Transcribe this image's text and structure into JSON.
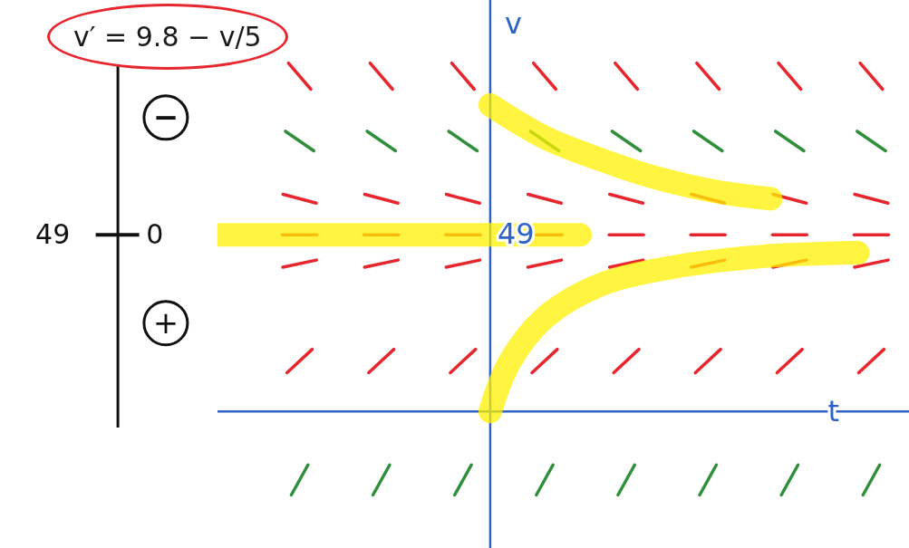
{
  "chart_data": {
    "type": "slope_field",
    "equation": "v′ = 9.8 − v/5",
    "x_label": "t",
    "y_label": "v",
    "xlim": [
      -10,
      15.4
    ],
    "ylim": [
      -38,
      114
    ],
    "tick_labels": false,
    "equilibrium": 49,
    "phase_line": {
      "equilibrium": 49,
      "slope": 0,
      "above": "−",
      "below": "+"
    },
    "slope_columns": [
      -7,
      -4,
      -1,
      2,
      5,
      8,
      11,
      14
    ],
    "slope_rows": [
      {
        "v": 93,
        "slope": -8.8,
        "color": "#e8262e"
      },
      {
        "v": 75,
        "slope": -5.2,
        "color": "#2f8f3a"
      },
      {
        "v": 59,
        "slope": -2,
        "color": "#e8262e"
      },
      {
        "v": 49,
        "slope": 0,
        "color": "#e8262e"
      },
      {
        "v": 41,
        "slope": 1.6,
        "color": "#e8262e"
      },
      {
        "v": 14,
        "slope": 7,
        "color": "#e8262e"
      },
      {
        "v": -19,
        "slope": 13.6,
        "color": "#2f8f3a"
      }
    ],
    "solutions": [
      {
        "t": [
          -10,
          3.3
        ],
        "v": [
          49,
          49
        ],
        "color": "#fff000"
      },
      {
        "t": [
          0,
          2,
          4,
          6,
          8.3,
          10.3
        ],
        "v": [
          85,
          76,
          70,
          65,
          61,
          59
        ],
        "color": "#fff000"
      },
      {
        "t": [
          0,
          0.7,
          2,
          4,
          6.7,
          10,
          13.5
        ],
        "v": [
          0,
          13.5,
          26,
          35,
          40,
          43,
          44
        ],
        "color": "#fff000"
      }
    ]
  }
}
